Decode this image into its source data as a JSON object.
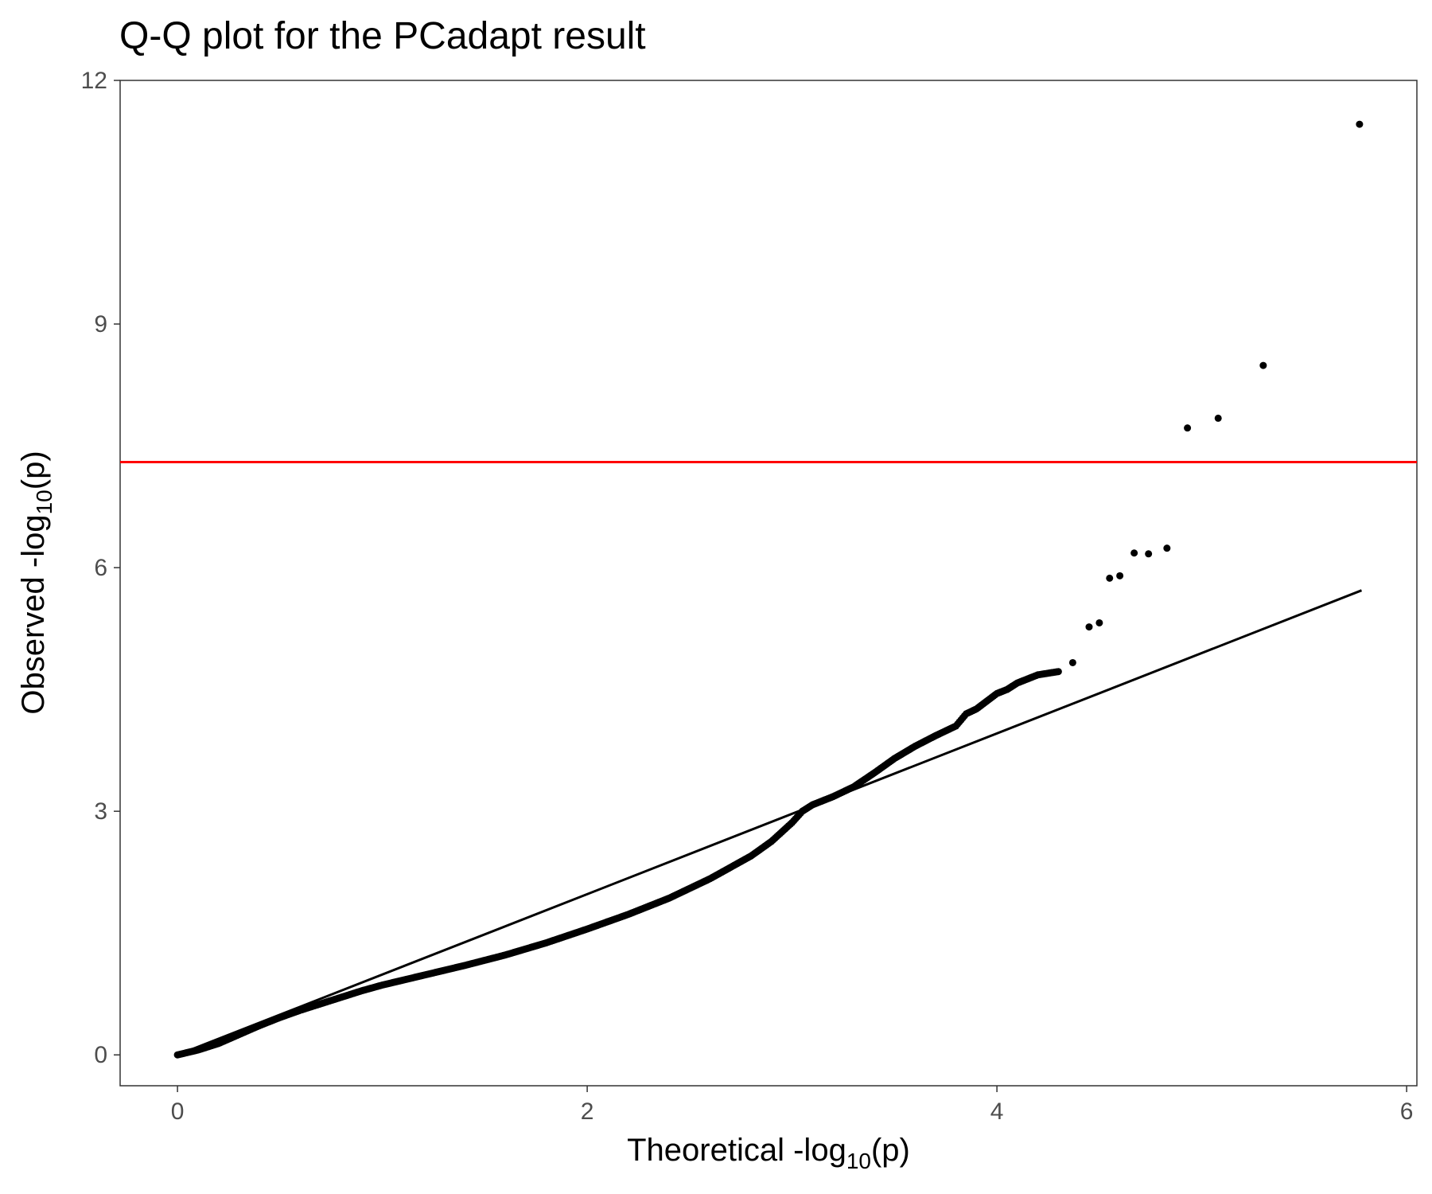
{
  "chart_data": {
    "type": "scatter",
    "title": "Q-Q plot for the PCadapt result",
    "xlabel": {
      "prefix": "Theoretical -log",
      "subscript": "10",
      "suffix": "(p)"
    },
    "ylabel": {
      "prefix": "Observed -log",
      "subscript": "10",
      "suffix": "(p)"
    },
    "xlim": [
      -0.28,
      6.05
    ],
    "ylim": [
      -0.38,
      12.0
    ],
    "xticks": [
      0,
      2,
      4,
      6
    ],
    "xtick_labels": [
      "0",
      "2",
      "4",
      "6"
    ],
    "yticks": [
      0,
      3,
      6,
      9,
      12
    ],
    "ytick_labels": [
      "0",
      "3",
      "6",
      "9",
      "12"
    ],
    "grid": false,
    "expected_line": {
      "x": [
        0,
        5.78
      ],
      "y": [
        0,
        5.72
      ],
      "color": "#000000"
    },
    "threshold_line": {
      "y": 7.3,
      "color": "#ff0000"
    },
    "point_color": "#000000",
    "observed_curve": {
      "description_points": [
        [
          0.0,
          0.0
        ],
        [
          0.1,
          0.06
        ],
        [
          0.2,
          0.14
        ],
        [
          0.3,
          0.25
        ],
        [
          0.4,
          0.36
        ],
        [
          0.5,
          0.46
        ],
        [
          0.6,
          0.55
        ],
        [
          0.7,
          0.63
        ],
        [
          0.8,
          0.71
        ],
        [
          0.9,
          0.79
        ],
        [
          1.0,
          0.86
        ],
        [
          1.2,
          0.98
        ],
        [
          1.4,
          1.1
        ],
        [
          1.6,
          1.23
        ],
        [
          1.8,
          1.38
        ],
        [
          2.0,
          1.55
        ],
        [
          2.2,
          1.73
        ],
        [
          2.4,
          1.93
        ],
        [
          2.6,
          2.17
        ],
        [
          2.8,
          2.45
        ],
        [
          2.9,
          2.63
        ],
        [
          3.0,
          2.86
        ],
        [
          3.05,
          3.0
        ],
        [
          3.1,
          3.08
        ],
        [
          3.2,
          3.18
        ],
        [
          3.3,
          3.3
        ],
        [
          3.4,
          3.47
        ],
        [
          3.5,
          3.65
        ],
        [
          3.6,
          3.8
        ],
        [
          3.7,
          3.93
        ],
        [
          3.8,
          4.05
        ],
        [
          3.85,
          4.2
        ],
        [
          3.9,
          4.26
        ],
        [
          4.0,
          4.45
        ],
        [
          4.05,
          4.5
        ],
        [
          4.1,
          4.58
        ],
        [
          4.2,
          4.68
        ],
        [
          4.3,
          4.72
        ]
      ]
    },
    "outliers": [
      [
        4.37,
        4.83
      ],
      [
        4.45,
        5.27
      ],
      [
        4.5,
        5.32
      ],
      [
        4.55,
        5.87
      ],
      [
        4.6,
        5.9
      ],
      [
        4.67,
        6.18
      ],
      [
        4.74,
        6.17
      ],
      [
        4.83,
        6.24
      ],
      [
        4.93,
        7.72
      ],
      [
        5.08,
        7.84
      ],
      [
        5.3,
        8.49
      ],
      [
        5.77,
        11.46
      ]
    ]
  }
}
